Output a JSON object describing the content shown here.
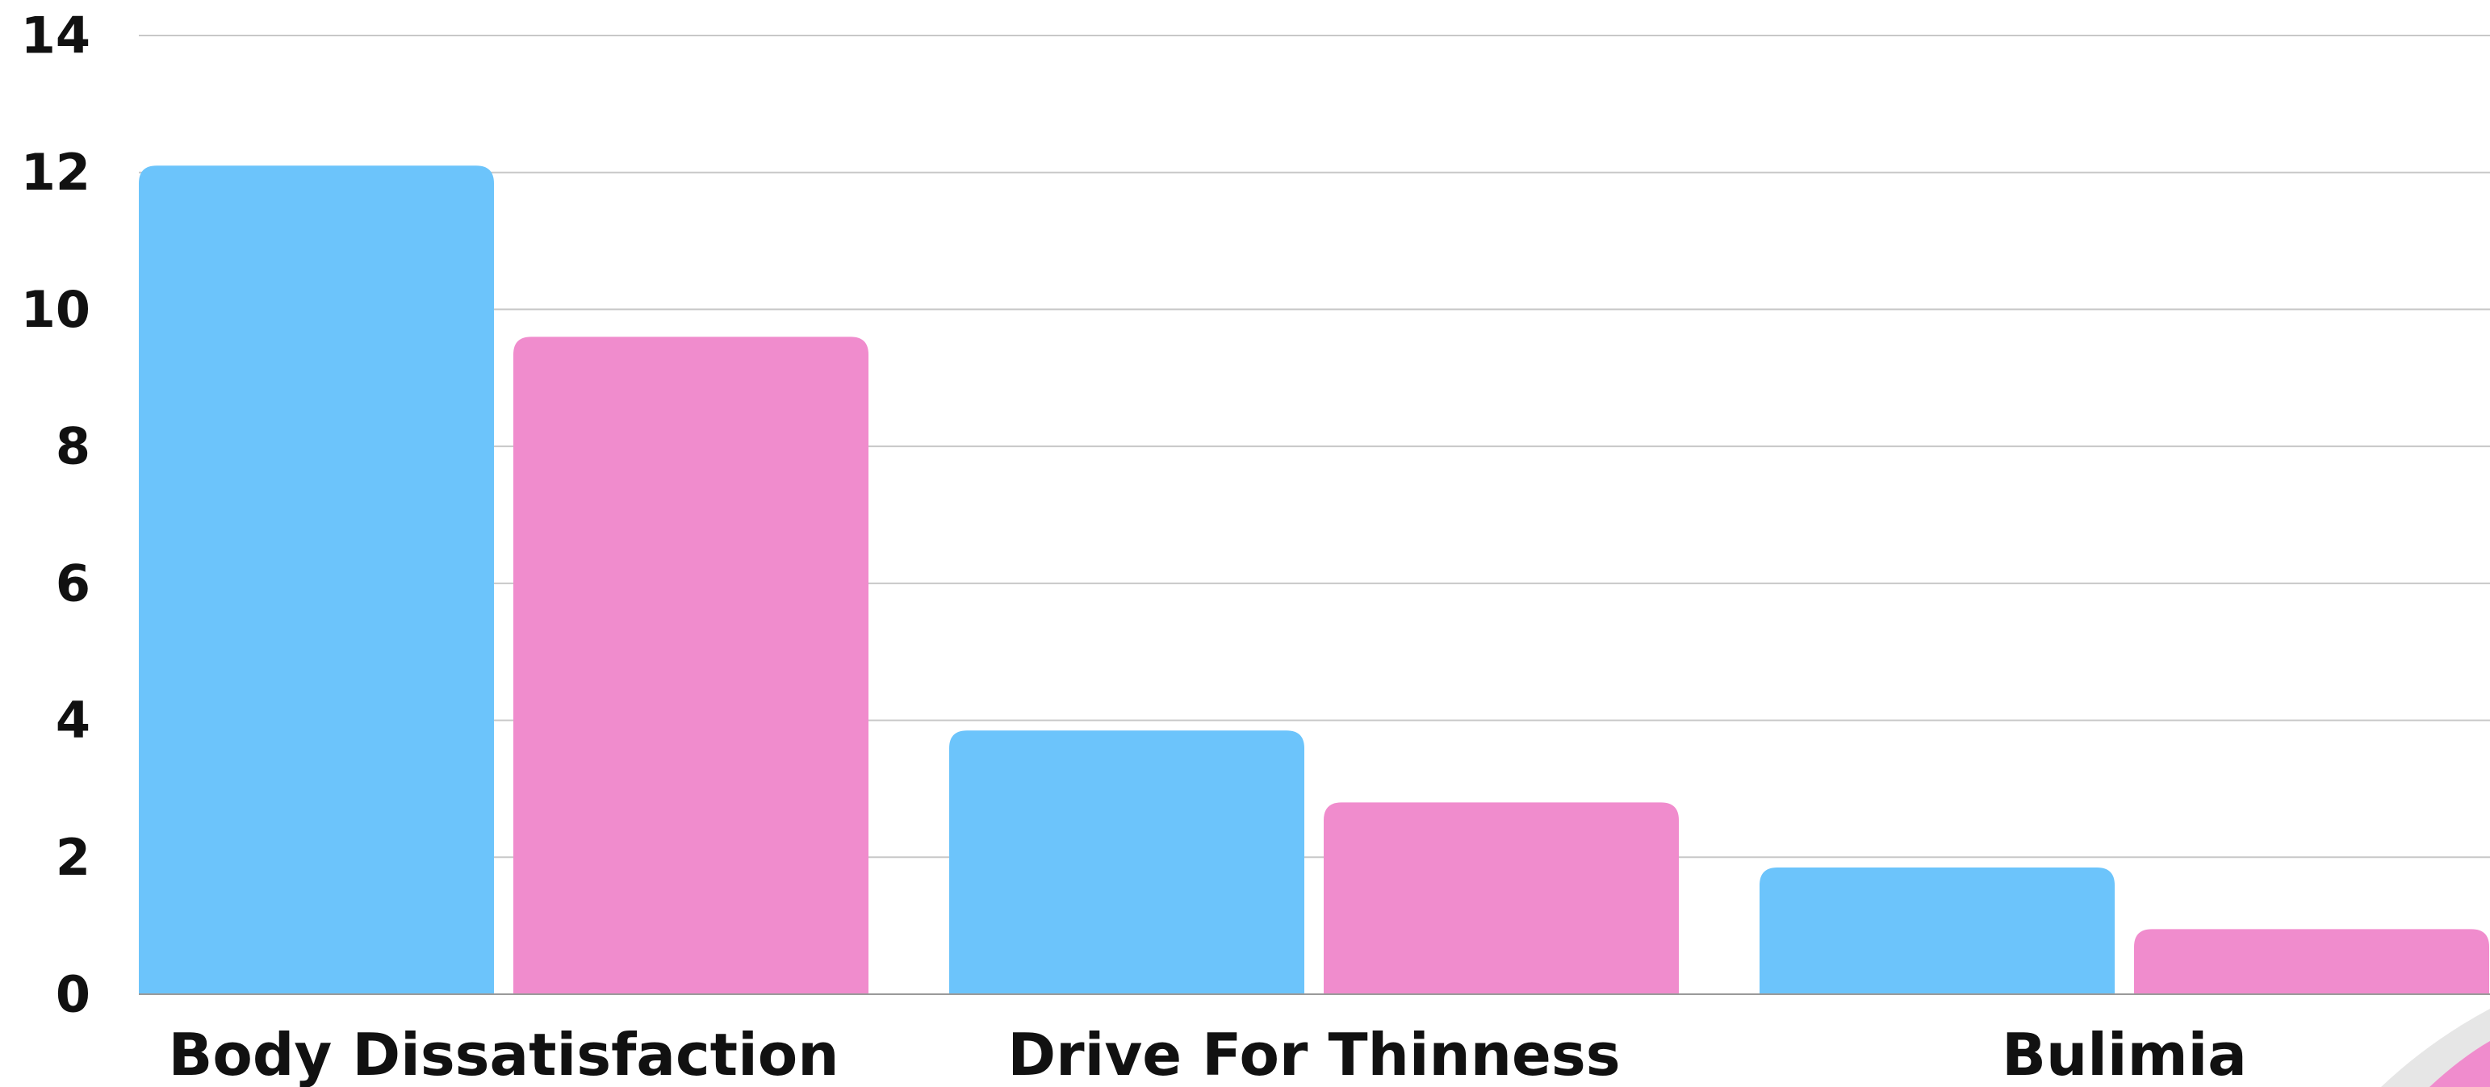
{
  "chart_data": {
    "type": "bar",
    "title": "",
    "xlabel": "",
    "ylabel": "",
    "categories": [
      "Body Dissatisfaction",
      "Drive For Thinness",
      "Bulimia"
    ],
    "series": [
      {
        "values": [
          12.1,
          3.85,
          1.85
        ],
        "color": "#6cc4fb"
      },
      {
        "values": [
          9.6,
          2.8,
          0.95
        ],
        "color": "#f08ccd"
      }
    ],
    "ylim": [
      0,
      14
    ],
    "yticks": [
      0,
      2,
      4,
      6,
      8,
      10,
      12,
      14
    ],
    "grid": true,
    "legend": "none"
  }
}
